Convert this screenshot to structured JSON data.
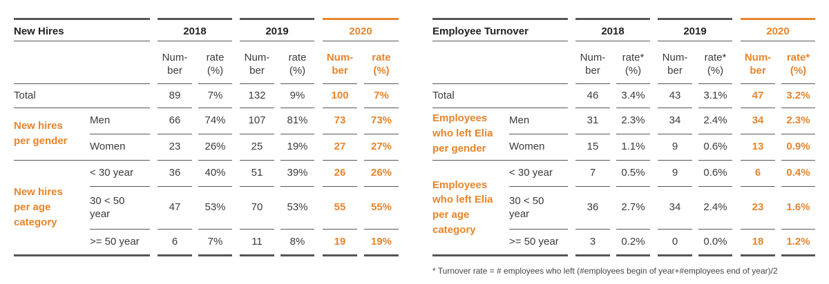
{
  "hires": {
    "title": "New Hires",
    "years": [
      "2018",
      "2019",
      "2020"
    ],
    "sub_number": "Num-\nber",
    "sub_rate": "rate\n(%)",
    "total_label": "Total",
    "group_gender": "New hires\nper gender",
    "group_age": "New hires\nper age\ncategory",
    "rows": [
      {
        "label": "",
        "v": [
          "89",
          "7%",
          "132",
          "9%",
          "100",
          "7%"
        ]
      },
      {
        "label": "Men",
        "v": [
          "66",
          "74%",
          "107",
          "81%",
          "73",
          "73%"
        ]
      },
      {
        "label": "Women",
        "v": [
          "23",
          "26%",
          "25",
          "19%",
          "27",
          "27%"
        ]
      },
      {
        "label": "< 30 year",
        "v": [
          "36",
          "40%",
          "51",
          "39%",
          "26",
          "26%"
        ]
      },
      {
        "label": "30 < 50\nyear",
        "v": [
          "47",
          "53%",
          "70",
          "53%",
          "55",
          "55%"
        ]
      },
      {
        "label": ">= 50 year",
        "v": [
          "6",
          "7%",
          "11",
          "8%",
          "19",
          "19%"
        ]
      }
    ]
  },
  "turnover": {
    "title": "Employee Turnover",
    "years": [
      "2018",
      "2019",
      "2020"
    ],
    "sub_number": "Num-\nber",
    "sub_rate": "rate*\n(%)",
    "total_label": "Total",
    "group_gender": "Employees\nwho left Elia\nper gender",
    "group_age": "Employees\nwho left Elia\nper age\ncategory",
    "rows": [
      {
        "label": "",
        "v": [
          "46",
          "3.4%",
          "43",
          "3.1%",
          "47",
          "3.2%"
        ]
      },
      {
        "label": "Men",
        "v": [
          "31",
          "2.3%",
          "34",
          "2.4%",
          "34",
          "2.3%"
        ]
      },
      {
        "label": "Women",
        "v": [
          "15",
          "1.1%",
          "9",
          "0.6%",
          "13",
          "0.9%"
        ]
      },
      {
        "label": "< 30 year",
        "v": [
          "7",
          "0.5%",
          "9",
          "0.6%",
          "6",
          "0.4%"
        ]
      },
      {
        "label": "30 < 50\nyear",
        "v": [
          "36",
          "2.7%",
          "34",
          "2.4%",
          "23",
          "1.6%"
        ]
      },
      {
        "label": ">= 50 year",
        "v": [
          "3",
          "0.2%",
          "0",
          "0.0%",
          "18",
          "1.2%"
        ]
      }
    ]
  },
  "footnote": "* Turnover rate = # employees who left (#employees begin of year+#employees end of year)/2",
  "colors": {
    "accent": "#e8842a",
    "text": "#3a3a3a",
    "rule": "#555555"
  }
}
